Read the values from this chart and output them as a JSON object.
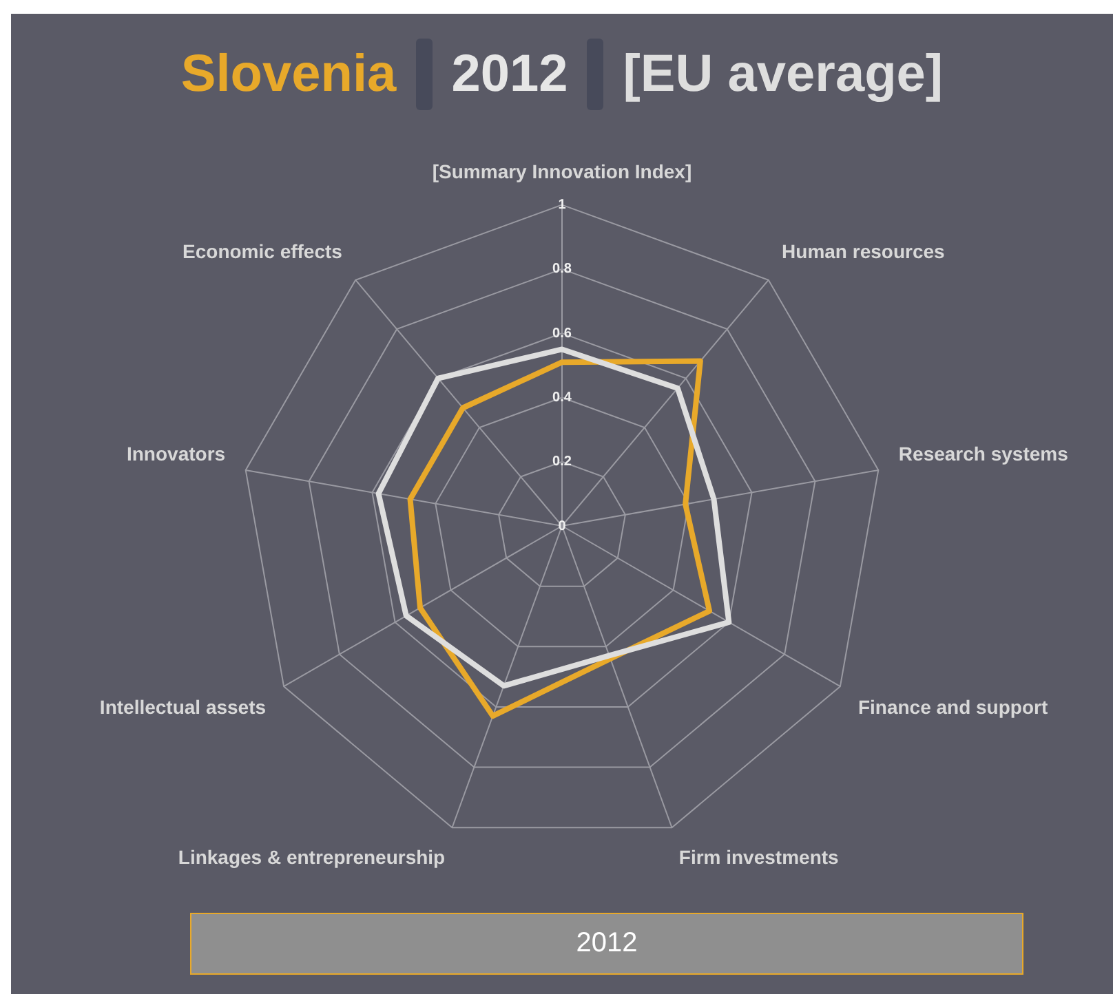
{
  "chart_data": {
    "type": "radar",
    "title": "2012",
    "categories": [
      "[Summary Innovation Index]",
      "Human resources",
      "Research systems",
      "Finance and support",
      "Firm investments",
      "Linkages & entrepreneurship",
      "Intellectual assets",
      "Innovators",
      "Economic effects"
    ],
    "series": [
      {
        "name": "Slovenia",
        "color": "#e8a92a",
        "values": [
          0.51,
          0.67,
          0.39,
          0.53,
          0.44,
          0.63,
          0.51,
          0.48,
          0.48
        ]
      },
      {
        "name": "[EU average]",
        "color": "#dedede",
        "values": [
          0.55,
          0.56,
          0.48,
          0.6,
          0.43,
          0.53,
          0.56,
          0.58,
          0.6
        ]
      }
    ],
    "ylim": [
      0,
      1
    ],
    "yticks": [
      0,
      0.2,
      0.4,
      0.6,
      0.8,
      1
    ],
    "grid": true,
    "legend": "top",
    "marker": "none",
    "annotations": [
      "2012"
    ]
  }
}
